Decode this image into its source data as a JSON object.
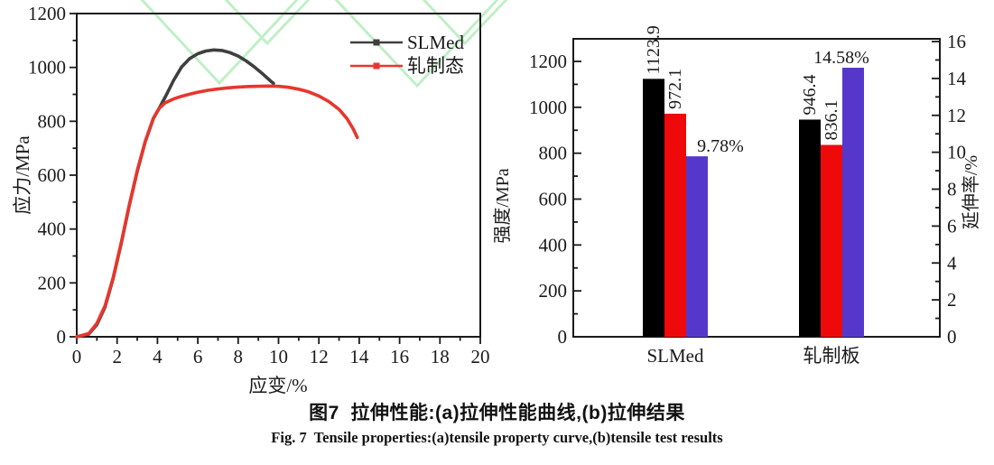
{
  "figure": {
    "caption_zh": "图7  拉伸性能:(a)拉伸性能曲线,(b)拉伸结果",
    "caption_en": "Fig. 7  Tensile properties:(a)tensile property curve,(b)tensile test results"
  },
  "colors": {
    "axis": "#1a1a1a",
    "text": "#1a1a1a",
    "curve_black": "#3f3f3f",
    "curve_red": "#e8362d",
    "bar_black": "#000000",
    "bar_red": "#ee0a0a",
    "bar_blue": "#5538cb",
    "watermark_green": "#b9eec0"
  },
  "chart_data": [
    {
      "type": "line",
      "panel": "a",
      "xlabel": "应变/%",
      "ylabel": "应力/MPa",
      "xlim": [
        0,
        20
      ],
      "ylim": [
        0,
        1200
      ],
      "xtick_step": 2,
      "xminor_step": 1,
      "ytick_step": 200,
      "yminor_step": 100,
      "grid": "off",
      "legend_position": "top-right",
      "series": [
        {
          "name": "SLMed",
          "color": "#3f3f3f",
          "points": [
            [
              0,
              0
            ],
            [
              0.6,
              10
            ],
            [
              1,
              45
            ],
            [
              1.4,
              110
            ],
            [
              1.8,
              215
            ],
            [
              2.2,
              345
            ],
            [
              2.6,
              485
            ],
            [
              3,
              615
            ],
            [
              3.4,
              725
            ],
            [
              3.8,
              810
            ],
            [
              4.1,
              850
            ],
            [
              4.4,
              892
            ],
            [
              4.8,
              952
            ],
            [
              5.2,
              1002
            ],
            [
              5.6,
              1033
            ],
            [
              6,
              1051
            ],
            [
              6.4,
              1061
            ],
            [
              6.8,
              1065
            ],
            [
              7.2,
              1063
            ],
            [
              7.6,
              1055
            ],
            [
              8,
              1042
            ],
            [
              8.4,
              1024
            ],
            [
              8.8,
              1002
            ],
            [
              9.2,
              977
            ],
            [
              9.6,
              950
            ],
            [
              9.75,
              941
            ]
          ]
        },
        {
          "name": "轧制态",
          "color": "#e8362d",
          "points": [
            [
              0,
              0
            ],
            [
              0.6,
              12
            ],
            [
              1,
              50
            ],
            [
              1.4,
              115
            ],
            [
              1.8,
              218
            ],
            [
              2.2,
              348
            ],
            [
              2.6,
              488
            ],
            [
              3,
              618
            ],
            [
              3.4,
              727
            ],
            [
              3.8,
              812
            ],
            [
              4.1,
              849
            ],
            [
              4.4,
              869
            ],
            [
              4.8,
              883
            ],
            [
              5.2,
              893
            ],
            [
              5.6,
              901
            ],
            [
              6,
              908
            ],
            [
              6.5,
              915
            ],
            [
              7,
              920
            ],
            [
              7.5,
              924
            ],
            [
              8,
              927
            ],
            [
              8.5,
              929
            ],
            [
              9,
              930
            ],
            [
              9.5,
              931
            ],
            [
              10,
              930
            ],
            [
              10.5,
              926
            ],
            [
              11,
              919
            ],
            [
              11.5,
              909
            ],
            [
              12,
              894
            ],
            [
              12.5,
              873
            ],
            [
              13,
              844
            ],
            [
              13.4,
              809
            ],
            [
              13.7,
              772
            ],
            [
              13.9,
              740
            ]
          ]
        }
      ]
    },
    {
      "type": "bar",
      "panel": "b",
      "categories": [
        "SLMed",
        "轧制板"
      ],
      "ylabel_left": "强度/MPa",
      "ylabel_right": "延伸率/%",
      "ylim_left": [
        0,
        1300
      ],
      "ytick_step_left": 200,
      "ytick_max_left": 1200,
      "yminor_step_left": 100,
      "ylim_right": [
        0,
        16
      ],
      "ytick_step_right": 2,
      "yminor_step_right": 1,
      "grid": "off",
      "series": [
        {
          "name": "strength-bar-1",
          "axis": "left",
          "color": "#000000",
          "values": [
            1123.9,
            946.4
          ],
          "labels": [
            "1123.9",
            "946.4"
          ],
          "label_rotated": true
        },
        {
          "name": "strength-bar-2",
          "axis": "left",
          "color": "#ee0a0a",
          "values": [
            972.1,
            836.1
          ],
          "labels": [
            "972.1",
            "836.1"
          ],
          "label_rotated": true
        },
        {
          "name": "elongation-bar",
          "axis": "right",
          "color": "#5538cb",
          "values": [
            9.78,
            14.58
          ],
          "labels": [
            "9.78%",
            "14.58%"
          ],
          "label_rotated": false,
          "label_dx": [
            26,
            -13
          ]
        }
      ]
    }
  ]
}
